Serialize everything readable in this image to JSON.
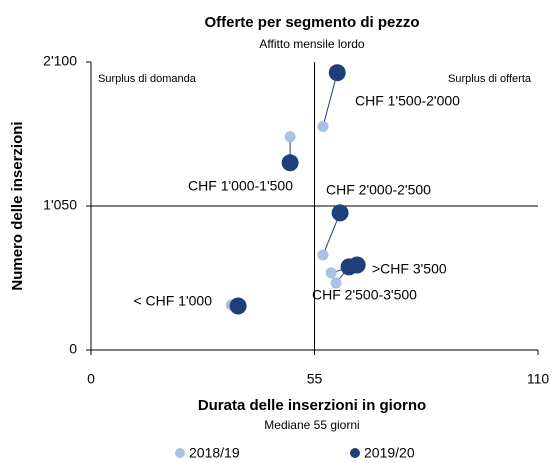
{
  "chart_data": {
    "type": "scatter",
    "title": "Offerte per segmento di pezzo",
    "subtitle": "Affitto mensile lordo",
    "x_label": "Durata delle inserzioni in giorno",
    "x_sublabel": "Mediane 55 giorni",
    "y_label": "Numero delle inserzioni",
    "annotations": [
      "Surplus di domanda",
      "Surplus di offerta"
    ],
    "labels": [
      "CHF 1'500-2'000",
      "CHF 1'000-1'500",
      "CHF 2'000-2'500",
      ">CHF 3'500",
      "CHF 2'500-3'500",
      "< CHF 1'000"
    ],
    "series": [
      {
        "name": "2018/19",
        "color": "#a9c1e3",
        "x": [
          57.1,
          49,
          57.1,
          59.1,
          60.3,
          34.5
        ],
        "values": [
          1630,
          1555,
          693,
          562,
          489,
          328
        ]
      },
      {
        "name": "2019/20",
        "color": "#1f3f7a",
        "x": [
          60.6,
          49,
          61.3,
          65.5,
          63.5,
          36.2
        ],
        "values": [
          2022,
          1365,
          1000,
          620,
          606,
          321
        ]
      }
    ],
    "median_x": 55,
    "median_y": 1050,
    "xlim": [
      0,
      110
    ],
    "xticks": [
      0,
      55,
      110
    ],
    "ylim": [
      0,
      2100
    ],
    "yticks": [
      0,
      {
        "value": 1050,
        "label": "1'050"
      },
      {
        "value": 2100,
        "label": "2'100"
      }
    ],
    "legend": "bottom"
  }
}
